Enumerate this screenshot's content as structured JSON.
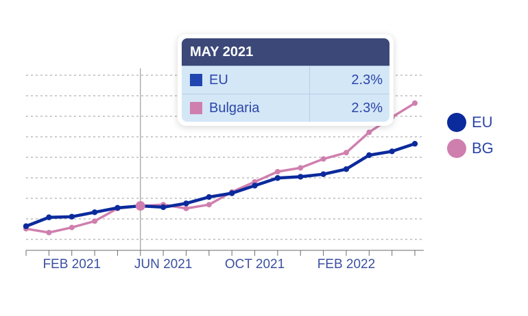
{
  "colors": {
    "eu": "#0b2a9c",
    "bg": "#cf7fae",
    "axis": "#3a4fa0"
  },
  "legend": [
    {
      "label": "EU",
      "color": "#0b2a9c"
    },
    {
      "label": "BG",
      "color": "#cf7fae"
    }
  ],
  "tooltip": {
    "title": "MAY 2021",
    "rows": [
      {
        "name": "EU",
        "value": "2.3%",
        "color": "#1f46b0"
      },
      {
        "name": "Bulgaria",
        "value": "2.3%",
        "color": "#cf7fae"
      }
    ]
  },
  "chart_data": {
    "type": "line",
    "x": [
      "2020-12",
      "2021-01",
      "2021-02",
      "2021-03",
      "2021-04",
      "2021-05",
      "2021-06",
      "2021-07",
      "2021-08",
      "2021-09",
      "2021-10",
      "2021-11",
      "2021-12",
      "2022-01",
      "2022-02",
      "2022-03",
      "2022-04",
      "2022-05"
    ],
    "x_tick_labels": [
      "FEB 2021",
      "JUN 2021",
      "OCT 2021",
      "FEB 2022"
    ],
    "x_tick_positions": [
      "2021-02",
      "2021-06",
      "2021-10",
      "2022-02"
    ],
    "highlight_x": "2021-05",
    "series": [
      {
        "name": "EU",
        "color": "#0b2a9c",
        "values": [
          0.7,
          1.4,
          1.45,
          1.8,
          2.15,
          2.3,
          2.2,
          2.5,
          3.0,
          3.3,
          3.9,
          4.5,
          4.6,
          4.8,
          5.2,
          6.3,
          6.6,
          7.2
        ]
      },
      {
        "name": "Bulgaria",
        "color": "#cf7fae",
        "values": [
          0.5,
          0.2,
          0.6,
          1.1,
          2.1,
          2.3,
          2.4,
          2.1,
          2.4,
          3.4,
          4.2,
          5.0,
          5.3,
          6.0,
          6.5,
          8.1,
          9.3,
          10.4
        ]
      }
    ],
    "ylim": [
      -0.5,
      12.6
    ],
    "grid": true,
    "legend_position": "right"
  }
}
